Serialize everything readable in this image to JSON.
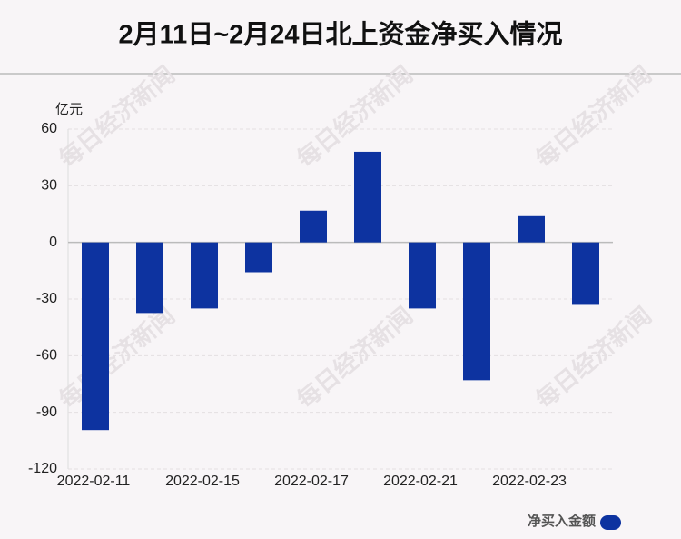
{
  "chart_data": {
    "type": "bar",
    "title": "2月11日~2月24日北上资金净买入情况",
    "y_label": "亿元",
    "watermark": "每日经济新闻",
    "categories": [
      "2022-02-11",
      null,
      "2022-02-15",
      null,
      "2022-02-17",
      null,
      "2022-02-21",
      null,
      "2022-02-23",
      null
    ],
    "series": [
      {
        "name": "净买入金额",
        "color": "#0d33a0",
        "values": [
          -99.4,
          -37.4,
          -35,
          -15.8,
          16.8,
          48,
          -35,
          -73,
          13.9,
          -33.1
        ]
      }
    ],
    "ylim": [
      -120,
      60
    ],
    "yticks": [
      -120,
      -90,
      -60,
      -30,
      0,
      30,
      60
    ],
    "grid": true,
    "legend": "bottom-right"
  }
}
